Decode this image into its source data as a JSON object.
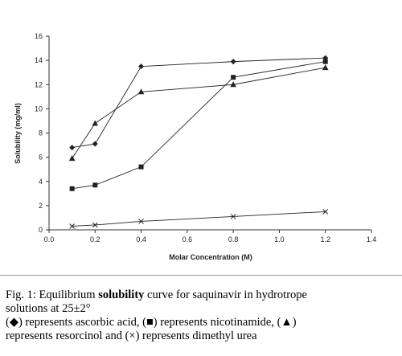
{
  "chart_data": {
    "type": "line",
    "title": "",
    "xlabel": "Molar Concentration (M)",
    "ylabel": "Solubility (mg/ml)",
    "xlim": [
      0,
      1.4
    ],
    "ylim": [
      0,
      16
    ],
    "xticks": [
      "0.0",
      "0.2",
      "0.4",
      "0.6",
      "0.8",
      "1.0",
      "1.2",
      "1.4"
    ],
    "yticks": [
      "0",
      "2",
      "4",
      "6",
      "8",
      "10",
      "12",
      "14",
      "16"
    ],
    "grid": false,
    "legend": "none",
    "series": [
      {
        "marker": "diamond",
        "color": "#222222",
        "x": [
          0.1,
          0.2,
          0.4,
          0.8,
          1.2
        ],
        "y": [
          6.8,
          7.1,
          13.5,
          13.9,
          14.2
        ]
      },
      {
        "marker": "square",
        "color": "#222222",
        "x": [
          0.1,
          0.2,
          0.4,
          0.8,
          1.2
        ],
        "y": [
          3.4,
          3.7,
          5.2,
          12.6,
          13.9
        ]
      },
      {
        "marker": "triangle",
        "color": "#222222",
        "x": [
          0.1,
          0.2,
          0.4,
          0.8,
          1.2
        ],
        "y": [
          5.9,
          8.8,
          11.4,
          12.0,
          13.4
        ]
      },
      {
        "marker": "x",
        "color": "#222222",
        "x": [
          0.1,
          0.2,
          0.4,
          0.8,
          1.2
        ],
        "y": [
          0.3,
          0.4,
          0.7,
          1.1,
          1.5
        ]
      }
    ]
  },
  "caption": {
    "line1_pre": "Fig. 1: Equilibrium ",
    "line1_bold": "solubility",
    "line1_post": " curve for saquinavir in hydrotrope",
    "line2": "solutions at 25±2°",
    "line3": "(◆) represents ascorbic acid, (■) represents nicotinamide, (▲)",
    "line4": "represents resorcinol and (×) represents dimethyl urea"
  }
}
